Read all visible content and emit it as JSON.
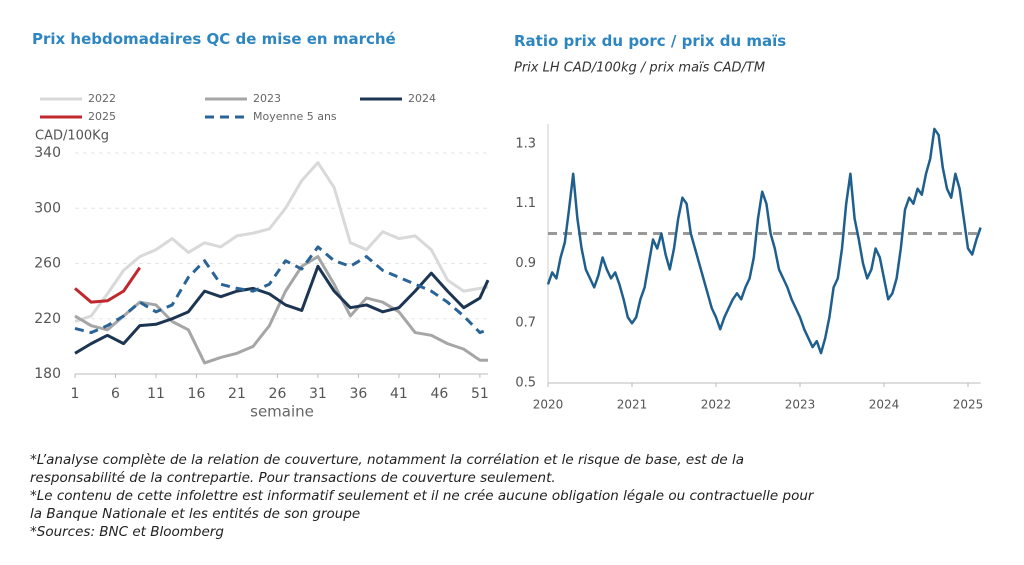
{
  "chart_data": [
    {
      "type": "line",
      "title": "Prix hebdomadaires QC de mise en marché",
      "y_label": "CAD/100Kg",
      "x_label": "semaine",
      "x": [
        1,
        3,
        5,
        7,
        9,
        11,
        13,
        15,
        17,
        19,
        21,
        23,
        25,
        27,
        29,
        31,
        33,
        35,
        37,
        39,
        41,
        43,
        45,
        47,
        49,
        51,
        52
      ],
      "xlim": [
        1,
        52
      ],
      "xticks": [
        1,
        6,
        11,
        16,
        21,
        26,
        31,
        36,
        41,
        46,
        51
      ],
      "ylim": [
        180,
        340
      ],
      "yticks": [
        180,
        220,
        260,
        300,
        340
      ],
      "grid": true,
      "series": [
        {
          "name": "2022",
          "color": "#d9d9d9",
          "values": [
            218,
            222,
            238,
            255,
            265,
            270,
            278,
            268,
            275,
            272,
            280,
            282,
            285,
            300,
            320,
            333,
            315,
            275,
            270,
            283,
            278,
            280,
            270,
            248,
            240,
            242,
            243
          ]
        },
        {
          "name": "2023",
          "color": "#a6a6a6",
          "values": [
            222,
            215,
            212,
            222,
            232,
            230,
            218,
            212,
            188,
            192,
            195,
            200,
            215,
            240,
            258,
            265,
            245,
            222,
            235,
            232,
            225,
            210,
            208,
            202,
            198,
            190,
            190
          ]
        },
        {
          "name": "2024",
          "color": "#1c3553",
          "values": [
            195,
            202,
            208,
            202,
            215,
            216,
            220,
            225,
            240,
            236,
            240,
            242,
            238,
            230,
            226,
            258,
            240,
            228,
            230,
            225,
            228,
            240,
            253,
            240,
            228,
            235,
            248
          ]
        },
        {
          "name": "2025",
          "color": "#c0282d",
          "values": [
            242,
            232,
            233,
            240,
            257,
            null,
            null,
            null,
            null,
            null,
            null,
            null,
            null,
            null,
            null,
            null,
            null,
            null,
            null,
            null,
            null,
            null,
            null,
            null,
            null,
            null,
            null
          ]
        },
        {
          "name": "Moyenne 5 ans",
          "color": "#2a6496",
          "style": "dashed",
          "values": [
            213,
            210,
            215,
            222,
            232,
            225,
            230,
            250,
            262,
            245,
            242,
            240,
            245,
            262,
            256,
            272,
            262,
            258,
            265,
            255,
            250,
            245,
            240,
            232,
            222,
            210,
            212
          ]
        }
      ]
    },
    {
      "type": "line",
      "title": "Ratio prix du porc / prix du maïs",
      "subtitle": "Prix LH CAD/100kg / prix maïs CAD/TM",
      "x": [
        2020,
        2020.05,
        2020.1,
        2020.15,
        2020.2,
        2020.25,
        2020.3,
        2020.35,
        2020.4,
        2020.45,
        2020.5,
        2020.55,
        2020.6,
        2020.65,
        2020.7,
        2020.75,
        2020.8,
        2020.85,
        2020.9,
        2020.95,
        2021,
        2021.05,
        2021.1,
        2021.15,
        2021.2,
        2021.25,
        2021.3,
        2021.35,
        2021.4,
        2021.45,
        2021.5,
        2021.55,
        2021.6,
        2021.65,
        2021.7,
        2021.75,
        2021.8,
        2021.85,
        2021.9,
        2021.95,
        2022,
        2022.05,
        2022.1,
        2022.15,
        2022.2,
        2022.25,
        2022.3,
        2022.35,
        2022.4,
        2022.45,
        2022.5,
        2022.55,
        2022.6,
        2022.65,
        2022.7,
        2022.75,
        2022.8,
        2022.85,
        2022.9,
        2022.95,
        2023,
        2023.05,
        2023.1,
        2023.15,
        2023.2,
        2023.25,
        2023.3,
        2023.35,
        2023.4,
        2023.45,
        2023.5,
        2023.55,
        2023.6,
        2023.65,
        2023.7,
        2023.75,
        2023.8,
        2023.85,
        2023.9,
        2023.95,
        2024,
        2024.05,
        2024.1,
        2024.15,
        2024.2,
        2024.25,
        2024.3,
        2024.35,
        2024.4,
        2024.45,
        2024.5,
        2024.55,
        2024.6,
        2024.65,
        2024.7,
        2024.75,
        2024.8,
        2024.85,
        2024.9,
        2024.95,
        2025,
        2025.05,
        2025.1,
        2025.15
      ],
      "values": [
        0.83,
        0.87,
        0.85,
        0.92,
        0.97,
        1.08,
        1.2,
        1.05,
        0.95,
        0.88,
        0.85,
        0.82,
        0.86,
        0.92,
        0.88,
        0.85,
        0.87,
        0.83,
        0.78,
        0.72,
        0.7,
        0.72,
        0.78,
        0.82,
        0.9,
        0.98,
        0.95,
        1.0,
        0.93,
        0.88,
        0.95,
        1.05,
        1.12,
        1.1,
        1.0,
        0.95,
        0.9,
        0.85,
        0.8,
        0.75,
        0.72,
        0.68,
        0.72,
        0.75,
        0.78,
        0.8,
        0.78,
        0.82,
        0.85,
        0.92,
        1.05,
        1.14,
        1.1,
        1.0,
        0.95,
        0.88,
        0.85,
        0.82,
        0.78,
        0.75,
        0.72,
        0.68,
        0.65,
        0.62,
        0.64,
        0.6,
        0.65,
        0.72,
        0.82,
        0.85,
        0.95,
        1.1,
        1.2,
        1.05,
        0.98,
        0.9,
        0.85,
        0.88,
        0.95,
        0.92,
        0.85,
        0.78,
        0.8,
        0.85,
        0.95,
        1.08,
        1.12,
        1.1,
        1.15,
        1.13,
        1.2,
        1.25,
        1.35,
        1.33,
        1.22,
        1.15,
        1.12,
        1.2,
        1.15,
        1.05,
        0.95,
        0.93,
        0.98,
        1.02
      ],
      "color": "#1f5f8e",
      "xlim": [
        2020,
        2025.15
      ],
      "xticks": [
        2020,
        2021,
        2022,
        2023,
        2024,
        2025
      ],
      "ylim": [
        0.5,
        1.4
      ],
      "yticks": [
        0.5,
        0.7,
        0.9,
        1.1,
        1.3
      ],
      "grid": false,
      "reference_line": {
        "value": 1,
        "color": "#999999"
      }
    }
  ],
  "notes": [
    "*L’analyse complète de la relation de couverture, notamment la corrélation et le risque de base, est de la responsabilité de la contrepartie. Pour transactions de couverture seulement.",
    "*Le contenu de cette infolettre est informatif seulement et il ne crée aucune obligation légale ou contractuelle pour la Banque Nationale et les entités de son groupe",
    "*Sources: BNC et Bloomberg"
  ]
}
